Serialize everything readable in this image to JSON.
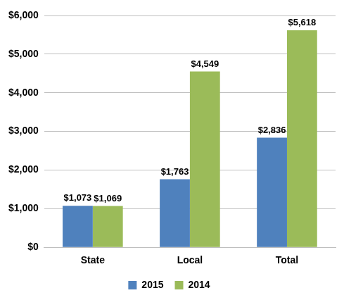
{
  "chart_data": {
    "type": "bar",
    "categories": [
      "State",
      "Local",
      "Total"
    ],
    "series": [
      {
        "name": "2015",
        "color": "#4f81bd",
        "values": [
          1073,
          1763,
          2836
        ],
        "value_labels": [
          "$1,073",
          "$1,763",
          "$2,836"
        ]
      },
      {
        "name": "2014",
        "color": "#9bbb59",
        "values": [
          1069,
          4549,
          5618
        ],
        "value_labels": [
          "$1,069",
          "$4,549",
          "$5,618"
        ]
      }
    ],
    "ylim": [
      0,
      6000
    ],
    "yticks": [
      {
        "value": 0,
        "label": "$0"
      },
      {
        "value": 1000,
        "label": "$1,000"
      },
      {
        "value": 2000,
        "label": "$2,000"
      },
      {
        "value": 3000,
        "label": "$3,000"
      },
      {
        "value": 4000,
        "label": "$4,000"
      },
      {
        "value": 5000,
        "label": "$5,000"
      },
      {
        "value": 6000,
        "label": "$6,000"
      }
    ],
    "grid": true,
    "legend": "bottom",
    "data_labels": true
  }
}
